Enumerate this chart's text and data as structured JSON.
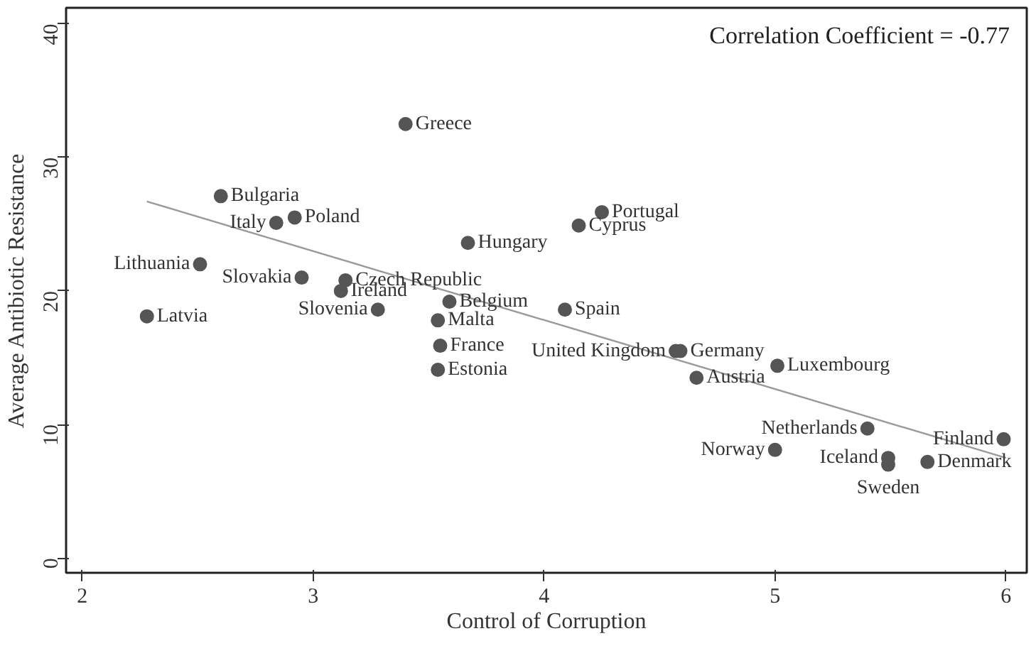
{
  "chart_data": {
    "type": "scatter",
    "xlabel": "Control of Corruption",
    "ylabel": "Average Antibiotic Resistance",
    "xlim": [
      1.93,
      6.09
    ],
    "ylim": [
      -1.1,
      41.2
    ],
    "xticks": [
      2,
      3,
      4,
      5,
      6
    ],
    "yticks": [
      0,
      10,
      20,
      30,
      40
    ],
    "grid": false,
    "series": [
      {
        "marker": "circle",
        "color": "#555555",
        "x": [
          3.4,
          2.6,
          2.84,
          2.92,
          4.25,
          4.15,
          3.67,
          2.51,
          2.95,
          3.14,
          3.12,
          3.28,
          2.28,
          3.59,
          3.54,
          4.09,
          3.55,
          3.54,
          4.57,
          4.59,
          5.01,
          4.66,
          5.4,
          5.0,
          5.49,
          5.49,
          5.66,
          5.99
        ],
        "values": [
          32.5,
          27.1,
          25.1,
          25.5,
          25.9,
          24.9,
          23.6,
          22.0,
          21.0,
          20.8,
          20.0,
          18.6,
          18.1,
          19.2,
          17.8,
          18.6,
          15.9,
          14.1,
          15.5,
          15.5,
          14.4,
          13.5,
          9.7,
          8.1,
          7.5,
          7.0,
          7.2,
          8.9
        ],
        "value_labels": [
          "Greece",
          "Bulgaria",
          "Italy",
          "Poland",
          "Portugal",
          "Cyprus",
          "Hungary",
          "Lithuania",
          "Slovakia",
          "Czech Republic",
          "Ireland",
          "Slovenia",
          "Latvia",
          "Belgium",
          "Malta",
          "Spain",
          "France",
          "Estonia",
          "United Kingdom",
          "Germany",
          "Luxembourg",
          "Austria",
          "Netherlands",
          "Norway",
          "Iceland",
          "Sweden",
          "Denmark",
          "Finland"
        ]
      },
      {
        "type": "line",
        "color": "#999999",
        "x": [
          2.28,
          6.0
        ],
        "values": [
          26.7,
          7.5
        ]
      }
    ],
    "annotations": [
      "Correlation Coefficient = -0.77"
    ]
  }
}
